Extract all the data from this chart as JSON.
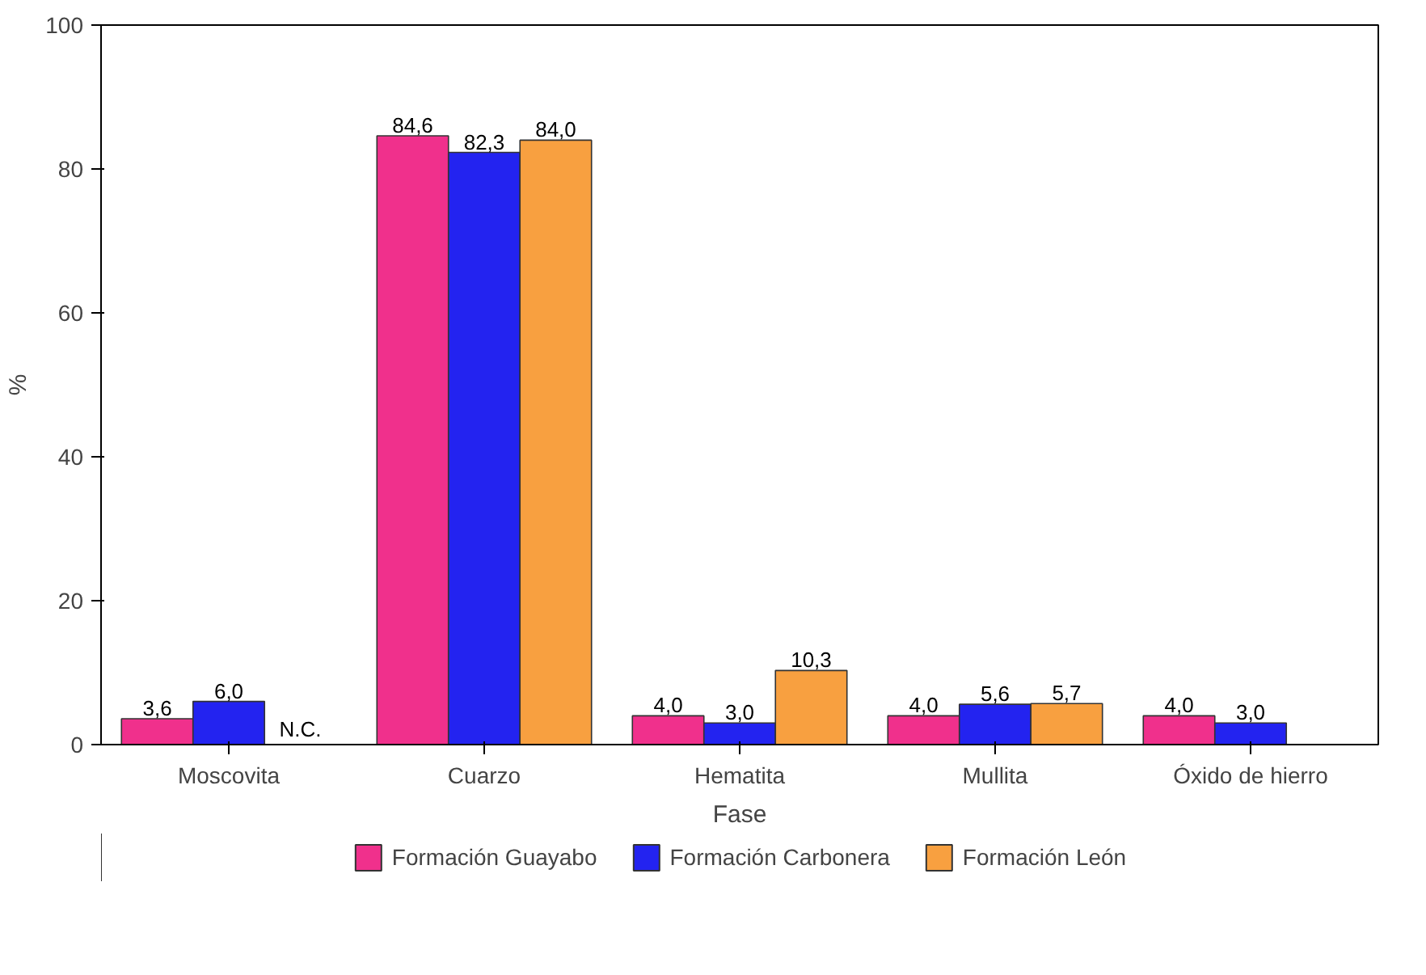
{
  "chart_data": {
    "type": "bar",
    "xlabel": "Fase",
    "ylabel": "%",
    "categories": [
      "Moscovita",
      "Cuarzo",
      "Hematita",
      "Mullita",
      "Óxido de hierro"
    ],
    "series": [
      {
        "name": "Formación Guayabo",
        "color": "#f0308c",
        "values": [
          3.6,
          84.6,
          4.0,
          4.0,
          4.0
        ],
        "value_labels": [
          "3,6",
          "84,6",
          "4,0",
          "4,0",
          "4,0"
        ]
      },
      {
        "name": "Formación Carbonera",
        "color": "#2323f0",
        "values": [
          6.0,
          82.3,
          3.0,
          5.6,
          3.0
        ],
        "value_labels": [
          "6,0",
          "82,3",
          "3,0",
          "5,6",
          "3,0"
        ]
      },
      {
        "name": "Formación León",
        "color": "#f8a040",
        "values": [
          null,
          84.0,
          10.3,
          5.7,
          null
        ],
        "value_labels": [
          "N.C.",
          "84,0",
          "10,3",
          "5,7",
          null
        ]
      }
    ],
    "ylim": [
      0,
      100
    ],
    "yticks": [
      0,
      20,
      40,
      60,
      80,
      100
    ],
    "grid": false,
    "legend": "bottom"
  }
}
